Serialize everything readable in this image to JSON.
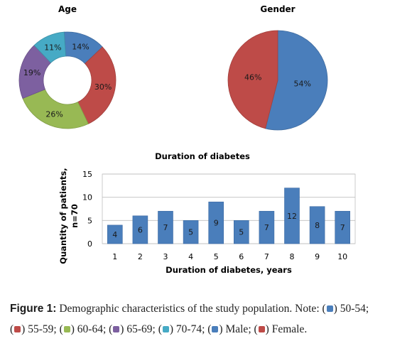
{
  "chart_data": [
    {
      "type": "pie",
      "title": "Age",
      "donut": true,
      "slices": [
        {
          "label": "50-54",
          "value": 14,
          "text": "14%",
          "color": "#4a7ebb"
        },
        {
          "label": "55-59",
          "value": 30,
          "text": "30%",
          "color": "#be4b48"
        },
        {
          "label": "60-64",
          "value": 26,
          "text": "26%",
          "color": "#98b954"
        },
        {
          "label": "65-69",
          "value": 19,
          "text": "19%",
          "color": "#7d60a0"
        },
        {
          "label": "70-74",
          "value": 11,
          "text": "11%",
          "color": "#46aac5"
        }
      ]
    },
    {
      "type": "pie",
      "title": "Gender",
      "donut": true,
      "slices": [
        {
          "label": "Male",
          "value": 54,
          "text": "54%",
          "color": "#4a7ebb"
        },
        {
          "label": "Female",
          "value": 46,
          "text": "46%",
          "color": "#be4b48"
        }
      ]
    },
    {
      "type": "bar",
      "title": "Duration of diabetes",
      "categories": [
        "1",
        "2",
        "3",
        "4",
        "5",
        "6",
        "7",
        "8",
        "9",
        "10"
      ],
      "values": [
        4,
        6,
        7,
        5,
        9,
        5,
        7,
        12,
        8,
        7
      ],
      "xlabel": "Duration of diabetes, years",
      "ylabel_lines": [
        "Quantity of patients,",
        "n=70"
      ],
      "ylim": [
        0,
        15
      ],
      "yticks": [
        0,
        5,
        10,
        15
      ],
      "grid": true,
      "color": "#4a7ebb"
    }
  ],
  "caption": {
    "label": "Figure 1:",
    "text": "Demographic characteristics of the study population. Note:",
    "items": [
      {
        "color": "#4a7ebb",
        "text": "50-54;"
      },
      {
        "color": "#be4b48",
        "text": "55-59;"
      },
      {
        "color": "#98b954",
        "text": "60-64;"
      },
      {
        "color": "#7d60a0",
        "text": "65-69;"
      },
      {
        "color": "#46aac5",
        "text": "70-74;"
      },
      {
        "color": "#4a7ebb",
        "text": "Male;"
      },
      {
        "color": "#be4b48",
        "text": "Female."
      }
    ]
  }
}
